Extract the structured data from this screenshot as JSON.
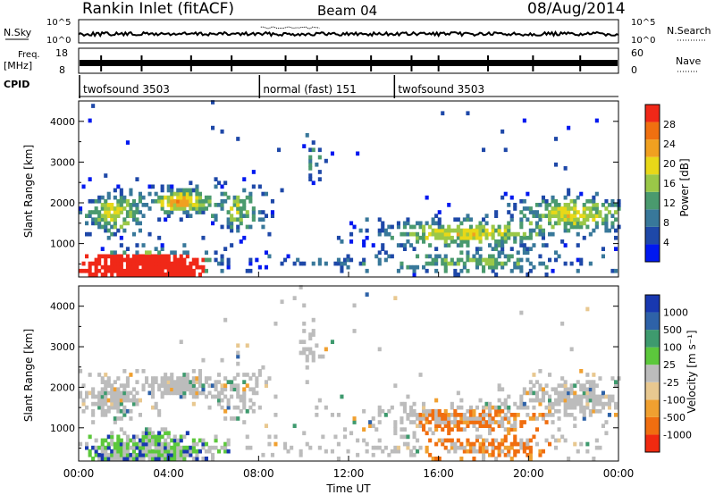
{
  "header": {
    "station": "Rankin Inlet (fitACF)",
    "beam": "Beam 04",
    "date": "08/Aug/2014"
  },
  "noise_panel": {
    "left_label": "N.Sky",
    "right_label": "N.Search",
    "tick_top": "10^5",
    "tick_bottom": "10^0",
    "right_tick_top": "10^5",
    "right_tick_bottom": "10^0"
  },
  "freq_panel": {
    "left_label_line1": "Freq.",
    "left_label_line2": "[MHz]",
    "left_tick_top": "18",
    "left_tick_bottom": "8",
    "right_label": "Nave",
    "right_tick_top": "60",
    "right_tick_bottom": "0"
  },
  "cpid_panel": {
    "label": "CPID",
    "segments": [
      {
        "name": "twofsound 3503",
        "start_hour": 0,
        "end_hour": 8
      },
      {
        "name": "normal (fast) 151",
        "start_hour": 8,
        "end_hour": 14
      },
      {
        "name": "twofsound 3503",
        "start_hour": 14,
        "end_hour": 24
      }
    ]
  },
  "colors": {
    "power_scale": [
      "#0018f0",
      "#1e48a8",
      "#38789a",
      "#4a9a6e",
      "#9ac848",
      "#e8d818",
      "#f0a020",
      "#f07010",
      "#f02818"
    ],
    "velocity_scale": [
      "#1838b0",
      "#2e62a8",
      "#3e9a6e",
      "#5cc83c",
      "#bcbcbc",
      "#e8c890",
      "#f0a030",
      "#f06e10",
      "#f02a10"
    ]
  },
  "chart_data": [
    {
      "type": "heatmap",
      "panel": "power",
      "xlabel": "Time UT",
      "ylabel": "Slant Range [km]",
      "x_range_hours": [
        0,
        24
      ],
      "ylim": [
        180,
        4500
      ],
      "x_tick_labels": [
        "00:00",
        "04:00",
        "08:00",
        "12:00",
        "16:00",
        "20:00",
        "00:00"
      ],
      "y_tick_labels": [
        "1000",
        "2000",
        "3000",
        "4000"
      ],
      "colorbar": {
        "label": "Power [dB]",
        "range": [
          0,
          30
        ],
        "tick_labels": [
          "4",
          "8",
          "12",
          "16",
          "20",
          "24",
          "28"
        ]
      }
    },
    {
      "type": "heatmap",
      "panel": "velocity",
      "xlabel": "Time UT",
      "ylabel": "Slant Range [km]",
      "x_range_hours": [
        0,
        24
      ],
      "ylim": [
        180,
        4500
      ],
      "x_tick_labels": [
        "00:00",
        "04:00",
        "08:00",
        "12:00",
        "16:00",
        "20:00",
        "00:00"
      ],
      "y_tick_labels": [
        "1000",
        "2000",
        "3000",
        "4000"
      ],
      "colorbar": {
        "label": "Velocity [m s⁻¹]",
        "tick_labels": [
          "1000",
          "500",
          "100",
          "25",
          "-25",
          "-100",
          "-500",
          "-1000"
        ]
      }
    }
  ]
}
